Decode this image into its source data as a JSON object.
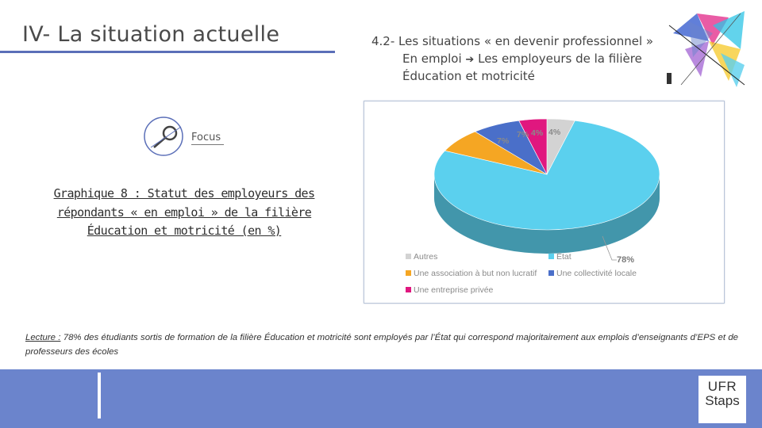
{
  "header": {
    "section_title": "IV- La situation actuelle",
    "subtitle_line1": "4.2- Les situations « en devenir professionnel »",
    "subtitle_line2_a": "En emploi",
    "subtitle_line2_b": "Les employeurs de la filière",
    "subtitle_line3": "Éducation et motricité",
    "arrow_icon": "arrow-right-icon"
  },
  "focus": {
    "label": "Focus",
    "icon": "focus-magnifier-icon"
  },
  "graph_caption": {
    "line1": "Graphique 8 : Statut des employeurs des",
    "line2": "répondants « en emploi » de la filière",
    "line3": "Éducation et motricité (en %)"
  },
  "chart_data": {
    "type": "pie",
    "style": "3d",
    "categories": [
      "Autres",
      "État",
      "Une association à but non lucratif",
      "Une collectivité locale",
      "Une entreprise privée"
    ],
    "values": [
      4,
      78,
      7,
      7,
      4
    ],
    "labels": [
      "4%",
      "78%",
      "7%",
      "7%",
      "4%"
    ],
    "colors": [
      "#d3d3d3",
      "#5bd0ee",
      "#f5a623",
      "#4a6fc9",
      "#e0177f"
    ],
    "legend_placement": "bottom"
  },
  "reading": {
    "label": "Lecture :",
    "text": " 78% des étudiants sortis de formation de la filière Éducation et motricité sont employés par l’État qui correspond majoritairement aux emplois d’enseignants d’EPS et de professeurs des écoles"
  },
  "logo": {
    "line1": "UFR",
    "line2": "Staps",
    "small": ""
  },
  "colors": {
    "accent": "#5b6fb8",
    "footer": "#6b84cc"
  }
}
